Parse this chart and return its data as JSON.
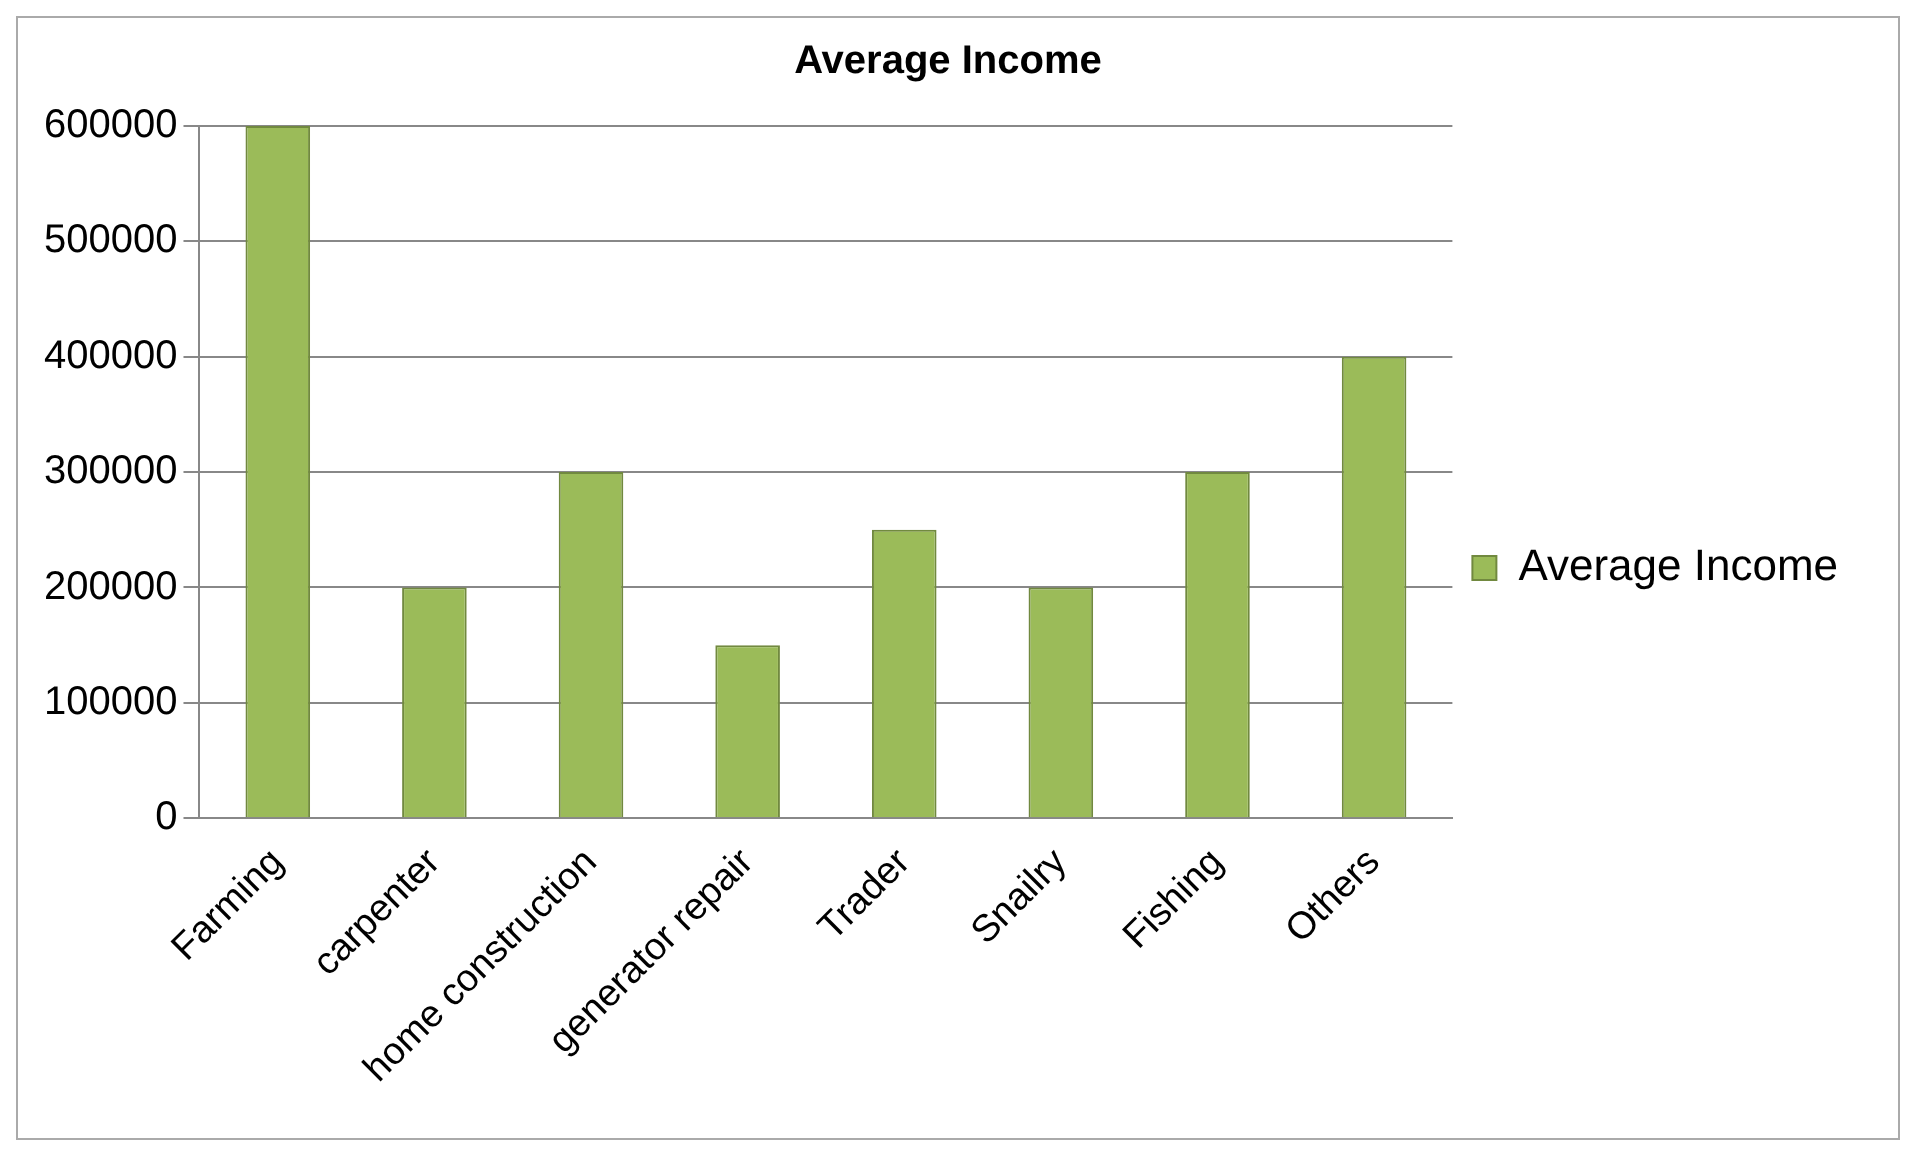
{
  "chart_data": {
    "type": "bar",
    "title": "Average Income",
    "categories": [
      "Farming",
      "carpenter",
      "home construction",
      "generator repair",
      "Trader",
      "Snailry",
      "Fishing",
      "Others"
    ],
    "series": [
      {
        "name": "Average Income",
        "color": "#9bbb59",
        "values": [
          600000,
          200000,
          300000,
          150000,
          250000,
          200000,
          300000,
          400000
        ]
      }
    ],
    "ylim": [
      0,
      600000
    ],
    "yticks": [
      0,
      100000,
      200000,
      300000,
      400000,
      500000,
      600000
    ],
    "grid": "y",
    "legend": "right"
  }
}
